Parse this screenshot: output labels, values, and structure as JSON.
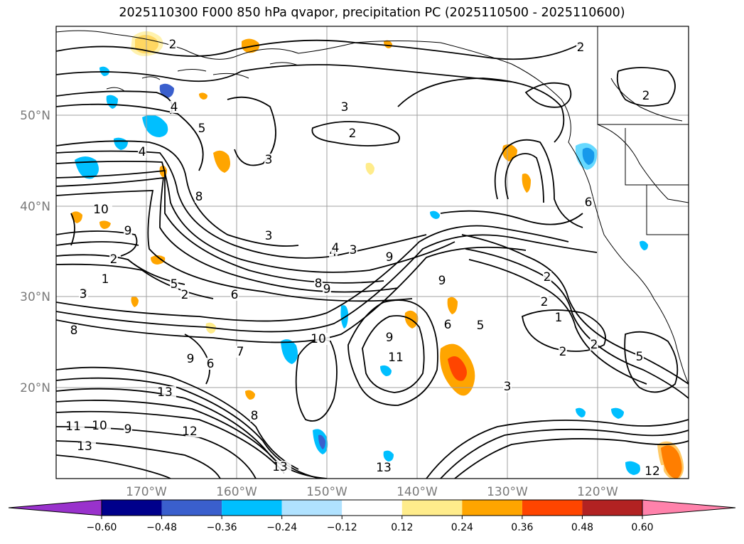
{
  "title": "2025110300 F000 850 hPa qvapor, precipitation PC (2025110500 - 2025110600)",
  "map": {
    "lat_labels": [
      "50°N",
      "40°N",
      "30°N",
      "20°N"
    ],
    "lon_labels": [
      "170°W",
      "160°W",
      "150°W",
      "140°W",
      "130°W",
      "120°W"
    ],
    "contour_labels": [
      "2",
      "2",
      "3",
      "2",
      "4",
      "5",
      "4",
      "2",
      "3",
      "3",
      "2",
      "8",
      "10",
      "9",
      "5",
      "4",
      "3",
      "2",
      "6",
      "9",
      "8",
      "9",
      "2",
      "1",
      "3",
      "8",
      "9",
      "10",
      "9",
      "6",
      "5",
      "3",
      "2",
      "9",
      "11",
      "12",
      "13",
      "13",
      "13",
      "12",
      "11",
      "10",
      "9",
      "8",
      "7",
      "6",
      "4",
      "2",
      "1",
      "3",
      "6",
      "2",
      "5",
      "13"
    ]
  },
  "colorbar": {
    "ticks": [
      "−0.60",
      "−0.48",
      "−0.36",
      "−0.24",
      "−0.12",
      "0.12",
      "0.24",
      "0.36",
      "0.48",
      "0.60"
    ],
    "colors": [
      "#9932CC",
      "#00008B",
      "#3A5FCD",
      "#00BFFF",
      "#B0E2FF",
      "#FFFFFF",
      "#FFEC8B",
      "#FFA500",
      "#FF4500",
      "#B22222",
      "#FF82AB"
    ]
  },
  "colors": {
    "grid": "#a0a0a0",
    "contour": "#000000",
    "coast": "#000000"
  }
}
